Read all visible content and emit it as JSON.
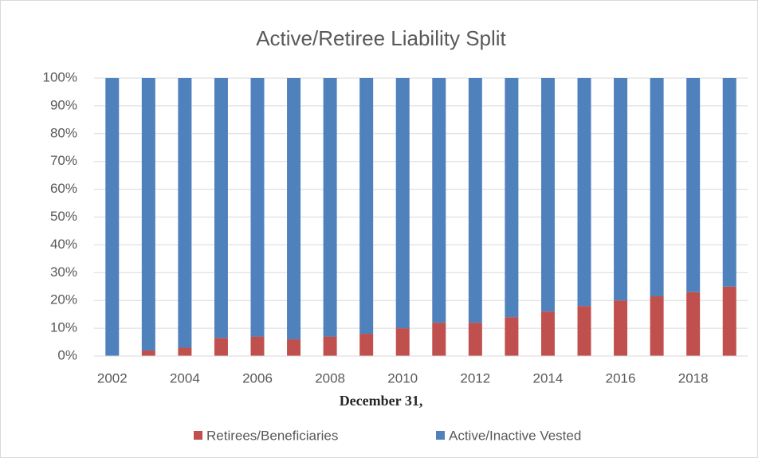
{
  "chart_data": {
    "type": "stacked_bar_100",
    "title": "Active/Retiree Liability Split",
    "x_label": "December 31,",
    "categories": [
      "2002",
      null,
      "2004",
      null,
      "2006",
      null,
      "2008",
      null,
      "2010",
      null,
      "2012",
      null,
      "2014",
      null,
      "2016",
      null,
      "2018",
      null
    ],
    "series": [
      {
        "name": "Retirees/Beneficiaries",
        "color": "#c0504d",
        "values": [
          0,
          2,
          3,
          6.5,
          7,
          6,
          7,
          8,
          10,
          12,
          12,
          14,
          16,
          18,
          20,
          21.5,
          23,
          25
        ]
      },
      {
        "name": "Active/Inactive Vested",
        "color": "#4f81bd",
        "values": [
          100,
          98,
          97,
          93.5,
          93,
          94,
          93,
          92,
          90,
          88,
          88,
          86,
          84,
          82,
          80,
          78.5,
          77,
          75
        ]
      }
    ],
    "ylim": [
      0,
      100
    ],
    "yticks": [
      {
        "value": 0,
        "label": "0%"
      },
      {
        "value": 10,
        "label": "10%"
      },
      {
        "value": 20,
        "label": "20%"
      },
      {
        "value": 30,
        "label": "30%"
      },
      {
        "value": 40,
        "label": "40%"
      },
      {
        "value": 50,
        "label": "50%"
      },
      {
        "value": 60,
        "label": "60%"
      },
      {
        "value": 70,
        "label": "70%"
      },
      {
        "value": 80,
        "label": "80%"
      },
      {
        "value": 90,
        "label": "90%"
      },
      {
        "value": 100,
        "label": "100%"
      }
    ],
    "grid": true,
    "legend": "bottom"
  }
}
